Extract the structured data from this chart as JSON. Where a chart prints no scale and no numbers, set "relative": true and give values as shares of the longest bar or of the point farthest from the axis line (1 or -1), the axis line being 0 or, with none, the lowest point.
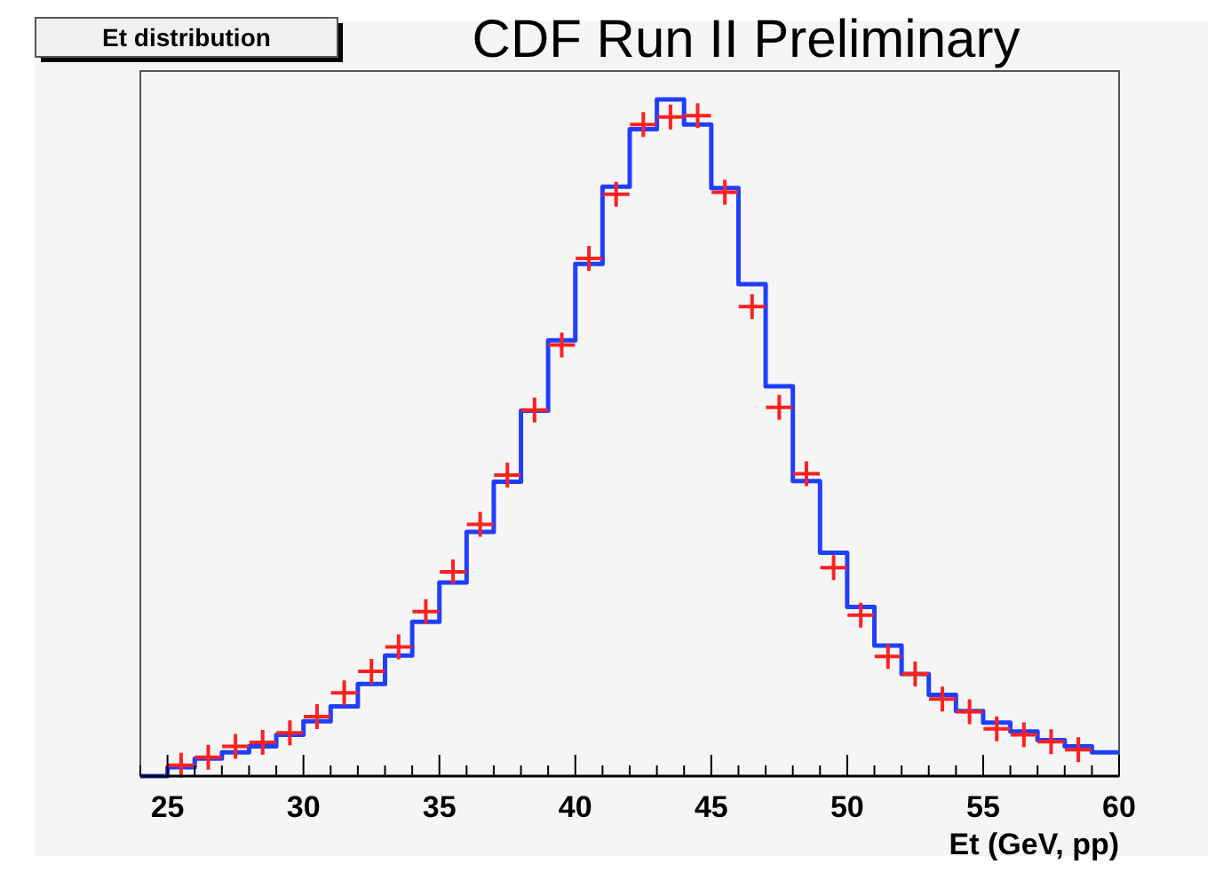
{
  "chart_data": {
    "type": "histogram",
    "title": "Et distribution",
    "xlabel": "Et (GeV, pp)",
    "annotations": [
      "CDF Run II Preliminary"
    ],
    "relative": true,
    "bins": [
      24,
      25,
      26,
      27,
      28,
      29,
      30,
      31,
      32,
      33,
      34,
      35,
      36,
      37,
      38,
      39,
      40,
      41,
      42,
      43,
      44,
      45,
      46,
      47,
      48,
      49,
      50,
      51,
      52,
      53,
      54,
      55,
      56,
      57,
      58,
      59,
      60
    ],
    "xlim": [
      24,
      60
    ],
    "xticks": [
      {
        "value": 24,
        "label": null
      },
      25,
      {
        "value": 26,
        "label": null
      },
      {
        "value": 27,
        "label": null
      },
      {
        "value": 28,
        "label": null
      },
      {
        "value": 29,
        "label": null
      },
      30,
      {
        "value": 31,
        "label": null
      },
      {
        "value": 32,
        "label": null
      },
      {
        "value": 33,
        "label": null
      },
      {
        "value": 34,
        "label": null
      },
      35,
      {
        "value": 36,
        "label": null
      },
      {
        "value": 37,
        "label": null
      },
      {
        "value": 38,
        "label": null
      },
      {
        "value": 39,
        "label": null
      },
      40,
      {
        "value": 41,
        "label": null
      },
      {
        "value": 42,
        "label": null
      },
      {
        "value": 43,
        "label": null
      },
      {
        "value": 44,
        "label": null
      },
      45,
      {
        "value": 46,
        "label": null
      },
      {
        "value": 47,
        "label": null
      },
      {
        "value": 48,
        "label": null
      },
      {
        "value": 49,
        "label": null
      },
      50,
      {
        "value": 51,
        "label": null
      },
      {
        "value": 52,
        "label": null
      },
      {
        "value": 53,
        "label": null
      },
      {
        "value": 54,
        "label": null
      },
      55,
      {
        "value": 56,
        "label": null
      },
      {
        "value": 57,
        "label": null
      },
      {
        "value": 58,
        "label": null
      },
      {
        "value": 59,
        "label": null
      },
      60
    ],
    "grid": false,
    "series": [
      {
        "color": "#1f3fff",
        "values": [
          0,
          0.013,
          0.026,
          0.035,
          0.044,
          0.061,
          0.081,
          0.103,
          0.136,
          0.178,
          0.228,
          0.286,
          0.361,
          0.435,
          0.54,
          0.644,
          0.757,
          0.871,
          0.956,
          1,
          0.963,
          0.869,
          0.727,
          0.576,
          0.436,
          0.33,
          0.25,
          0.193,
          0.151,
          0.12,
          0.096,
          0.079,
          0.066,
          0.053,
          0.044,
          0.035
        ]
      },
      {
        "type": "scatter",
        "color": "#ff2020",
        "marker": "cross",
        "x": [
          25.5,
          26.5,
          27.5,
          28.5,
          29.5,
          30.5,
          31.5,
          32.5,
          33.5,
          34.5,
          35.5,
          36.5,
          37.5,
          38.5,
          39.5,
          40.5,
          41.5,
          42.5,
          43.5,
          44.5,
          45.5,
          46.5,
          47.5,
          48.5,
          49.5,
          50.5,
          51.5,
          52.5,
          53.5,
          54.5,
          55.5,
          56.5,
          57.5,
          58.5
        ],
        "values": [
          0.016,
          0.028,
          0.044,
          0.05,
          0.064,
          0.088,
          0.123,
          0.155,
          0.191,
          0.243,
          0.302,
          0.372,
          0.445,
          0.541,
          0.637,
          0.765,
          0.86,
          0.963,
          0.974,
          0.976,
          0.863,
          0.694,
          0.545,
          0.447,
          0.308,
          0.238,
          0.177,
          0.151,
          0.114,
          0.095,
          0.07,
          0.061,
          0.051,
          0.039
        ]
      }
    ]
  }
}
